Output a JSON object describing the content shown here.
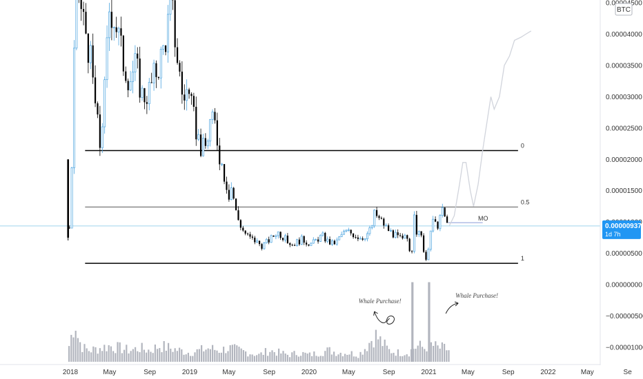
{
  "chart_data": {
    "type": "candlestick",
    "symbol_badge": "BTC",
    "price_badge": {
      "value": "0.00000937",
      "countdown": "1d 7h",
      "price": 9.37e-06
    },
    "y_ticks": [
      {
        "label": "0.00004500",
        "value": 4.5e-05
      },
      {
        "label": "0.00004000",
        "value": 4e-05
      },
      {
        "label": "0.00003500",
        "value": 3.5e-05
      },
      {
        "label": "0.00003000",
        "value": 3e-05
      },
      {
        "label": "0.00002500",
        "value": 2.5e-05
      },
      {
        "label": "0.00002000",
        "value": 2e-05
      },
      {
        "label": "0.00001500",
        "value": 1.5e-05
      },
      {
        "label": "0.00001000",
        "value": 1e-05
      },
      {
        "label": "0.00000500",
        "value": 5e-06
      },
      {
        "label": "0.00000000",
        "value": 0.0
      },
      {
        "label": "−0.00000500",
        "value": -5e-06
      },
      {
        "label": "−0.00001000",
        "value": -1e-05
      }
    ],
    "x_ticks": [
      "2018",
      "May",
      "Sep",
      "2019",
      "May",
      "Sep",
      "2020",
      "May",
      "Sep",
      "2021",
      "May",
      "Sep",
      "2022",
      "May",
      "Se"
    ],
    "x_tick_dates": [
      "2018-01",
      "2018-05",
      "2018-09",
      "2019-01",
      "2019-05",
      "2019-09",
      "2020-01",
      "2020-05",
      "2020-09",
      "2021-01",
      "2021-05",
      "2021-09",
      "2022-01",
      "2022-05",
      "2022-09"
    ],
    "fib_levels": [
      {
        "label": "0",
        "price": 2.14e-05,
        "color": "#000000"
      },
      {
        "label": "0.5",
        "price": 1.24e-05,
        "color": "#555555"
      },
      {
        "label": "1",
        "price": 3.4e-06,
        "color": "#000000"
      }
    ],
    "hline": {
      "label": "MO",
      "price": 9.9e-06
    },
    "annotations": [
      {
        "text": "Whale Purchase!",
        "date": "2020-09-20"
      },
      {
        "text": "Whale Purchase!",
        "date": "2021-02-01"
      }
    ],
    "price_path": [
      [
        "2017-12-25",
        2e-05
      ],
      [
        "2017-12-28",
        7.5e-06
      ],
      [
        "2018-01-05",
        1.8e-05
      ],
      [
        "2018-01-10",
        3e-05
      ],
      [
        "2018-01-15",
        4.2e-05
      ],
      [
        "2018-01-25",
        4.7e-05
      ],
      [
        "2018-02-05",
        4.3e-05
      ],
      [
        "2018-02-20",
        4e-05
      ],
      [
        "2018-03-05",
        3.5e-05
      ],
      [
        "2018-03-20",
        2.8e-05
      ],
      [
        "2018-04-01",
        2.2e-05
      ],
      [
        "2018-04-15",
        3e-05
      ],
      [
        "2018-05-01",
        4.5e-05
      ],
      [
        "2018-05-20",
        4.2e-05
      ],
      [
        "2018-06-10",
        3.6e-05
      ],
      [
        "2018-07-01",
        3.3e-05
      ],
      [
        "2018-07-20",
        3.5e-05
      ],
      [
        "2018-08-10",
        3e-05
      ],
      [
        "2018-09-01",
        3.1e-05
      ],
      [
        "2018-09-20",
        3.4e-05
      ],
      [
        "2018-10-10",
        3.7e-05
      ],
      [
        "2018-10-25",
        4.1e-05
      ],
      [
        "2018-11-05",
        4.5e-05
      ],
      [
        "2018-11-25",
        3.6e-05
      ],
      [
        "2018-12-10",
        3e-05
      ],
      [
        "2018-12-25",
        3.1e-05
      ],
      [
        "2019-01-10",
        2.7e-05
      ],
      [
        "2019-01-25",
        2.4e-05
      ],
      [
        "2019-02-05",
        2.15e-05
      ],
      [
        "2019-02-20",
        2.2e-05
      ],
      [
        "2019-03-05",
        2.6e-05
      ],
      [
        "2019-03-20",
        2.55e-05
      ],
      [
        "2019-04-01",
        2.1e-05
      ],
      [
        "2019-04-15",
        1.8e-05
      ],
      [
        "2019-05-01",
        1.45e-05
      ],
      [
        "2019-05-10",
        1.6e-05
      ],
      [
        "2019-05-20",
        1.2e-05
      ],
      [
        "2019-06-01",
        1e-05
      ],
      [
        "2019-06-15",
        8.5e-06
      ],
      [
        "2019-07-01",
        7.5e-06
      ],
      [
        "2019-07-20",
        7e-06
      ],
      [
        "2019-08-10",
        6.2e-06
      ],
      [
        "2019-08-25",
        6.8e-06
      ],
      [
        "2019-09-10",
        7.5e-06
      ],
      [
        "2019-09-25",
        8.5e-06
      ],
      [
        "2019-10-10",
        7.8e-06
      ],
      [
        "2019-10-25",
        7e-06
      ],
      [
        "2019-11-10",
        6.4e-06
      ],
      [
        "2019-11-25",
        6.8e-06
      ],
      [
        "2019-12-10",
        7.2e-06
      ],
      [
        "2019-12-25",
        6.8e-06
      ],
      [
        "2020-01-10",
        6.5e-06
      ],
      [
        "2020-01-25",
        7.2e-06
      ],
      [
        "2020-02-10",
        7.8e-06
      ],
      [
        "2020-02-25",
        7e-06
      ],
      [
        "2020-03-10",
        6.5e-06
      ],
      [
        "2020-03-25",
        6.8e-06
      ],
      [
        "2020-04-10",
        8e-06
      ],
      [
        "2020-04-25",
        8.5e-06
      ],
      [
        "2020-05-10",
        8.2e-06
      ],
      [
        "2020-05-25",
        7.8e-06
      ],
      [
        "2020-06-10",
        7.5e-06
      ],
      [
        "2020-06-25",
        8e-06
      ],
      [
        "2020-07-10",
        9e-06
      ],
      [
        "2020-07-20",
        1.15e-05
      ],
      [
        "2020-08-01",
        1.05e-05
      ],
      [
        "2020-08-15",
        9.8e-06
      ],
      [
        "2020-08-25",
        9e-06
      ],
      [
        "2020-09-05",
        8.5e-06
      ],
      [
        "2020-09-20",
        7.8e-06
      ],
      [
        "2020-10-01",
        7.5e-06
      ],
      [
        "2020-10-15",
        7e-06
      ],
      [
        "2020-10-25",
        8e-06
      ],
      [
        "2020-11-01",
        6e-06
      ],
      [
        "2020-11-10",
        5e-06
      ],
      [
        "2020-11-15",
        1.1e-05
      ],
      [
        "2020-11-25",
        8.5e-06
      ],
      [
        "2020-12-10",
        7.5e-06
      ],
      [
        "2020-12-20",
        4.5e-06
      ],
      [
        "2020-12-28",
        3.5e-06
      ],
      [
        "2021-01-05",
        8.5e-06
      ],
      [
        "2021-01-15",
        1e-05
      ],
      [
        "2021-01-25",
        9e-06
      ],
      [
        "2021-02-05",
        1.1e-05
      ],
      [
        "2021-02-15",
        1.18e-05
      ],
      [
        "2021-02-25",
        9.5e-06
      ],
      [
        "2021-03-05",
        9.4e-06
      ]
    ],
    "projection_path": [
      [
        "2021-03-05",
        9.4e-06
      ],
      [
        "2021-03-20",
        1.1e-05
      ],
      [
        "2021-04-05",
        1.6e-05
      ],
      [
        "2021-04-15",
        1.95e-05
      ],
      [
        "2021-04-25",
        1.95e-05
      ],
      [
        "2021-05-08",
        1.5e-05
      ],
      [
        "2021-05-18",
        1.25e-05
      ],
      [
        "2021-06-01",
        1.6e-05
      ],
      [
        "2021-06-15",
        2.15e-05
      ],
      [
        "2021-07-01",
        2.7e-05
      ],
      [
        "2021-07-10",
        3e-05
      ],
      [
        "2021-07-20",
        2.8e-05
      ],
      [
        "2021-08-05",
        3e-05
      ],
      [
        "2021-08-20",
        3.5e-05
      ],
      [
        "2021-09-05",
        3.65e-05
      ],
      [
        "2021-09-20",
        3.9e-05
      ],
      [
        "2021-10-10",
        3.95e-05
      ],
      [
        "2021-10-25",
        4e-05
      ],
      [
        "2021-11-10",
        4.05e-05
      ]
    ],
    "volume_path": [
      [
        "2017-12-28",
        0.35
      ],
      [
        "2018-01-05",
        0.6
      ],
      [
        "2018-01-10",
        0.8
      ],
      [
        "2018-01-15",
        1.0
      ],
      [
        "2018-01-25",
        0.5
      ],
      [
        "2018-02-10",
        0.3
      ],
      [
        "2018-03-01",
        0.25
      ],
      [
        "2018-04-01",
        0.3
      ],
      [
        "2018-05-01",
        0.35
      ],
      [
        "2018-06-01",
        0.3
      ],
      [
        "2018-07-01",
        0.25
      ],
      [
        "2018-08-01",
        0.3
      ],
      [
        "2018-09-01",
        0.25
      ],
      [
        "2018-10-01",
        0.35
      ],
      [
        "2018-11-01",
        0.3
      ],
      [
        "2018-12-01",
        0.25
      ],
      [
        "2019-01-01",
        0.2
      ],
      [
        "2019-02-01",
        0.25
      ],
      [
        "2019-03-01",
        0.3
      ],
      [
        "2019-04-01",
        0.25
      ],
      [
        "2019-05-01",
        0.3
      ],
      [
        "2019-06-01",
        0.25
      ],
      [
        "2019-07-01",
        0.2
      ],
      [
        "2019-08-01",
        0.15
      ],
      [
        "2019-09-01",
        0.25
      ],
      [
        "2019-10-01",
        0.2
      ],
      [
        "2019-11-01",
        0.15
      ],
      [
        "2019-12-01",
        0.2
      ],
      [
        "2020-01-01",
        0.15
      ],
      [
        "2020-02-01",
        0.2
      ],
      [
        "2020-03-01",
        0.25
      ],
      [
        "2020-04-01",
        0.2
      ],
      [
        "2020-05-01",
        0.2
      ],
      [
        "2020-06-01",
        0.15
      ],
      [
        "2020-07-01",
        0.4
      ],
      [
        "2020-07-20",
        0.6
      ],
      [
        "2020-08-01",
        0.5
      ],
      [
        "2020-09-01",
        0.25
      ],
      [
        "2020-10-01",
        0.2
      ],
      [
        "2020-11-01",
        0.2
      ],
      [
        "2020-11-15",
        0.3
      ],
      [
        "2020-12-01",
        0.35
      ],
      [
        "2020-12-20",
        0.3
      ],
      [
        "2021-01-01",
        0.4
      ],
      [
        "2021-01-15",
        0.35
      ],
      [
        "2021-02-01",
        0.3
      ],
      [
        "2021-02-15",
        0.3
      ],
      [
        "2021-03-05",
        0.25
      ]
    ],
    "volume_spikes": [
      {
        "date": "2020-11-12",
        "value": 1.75
      },
      {
        "date": "2021-01-02",
        "value": 1.75
      }
    ]
  }
}
